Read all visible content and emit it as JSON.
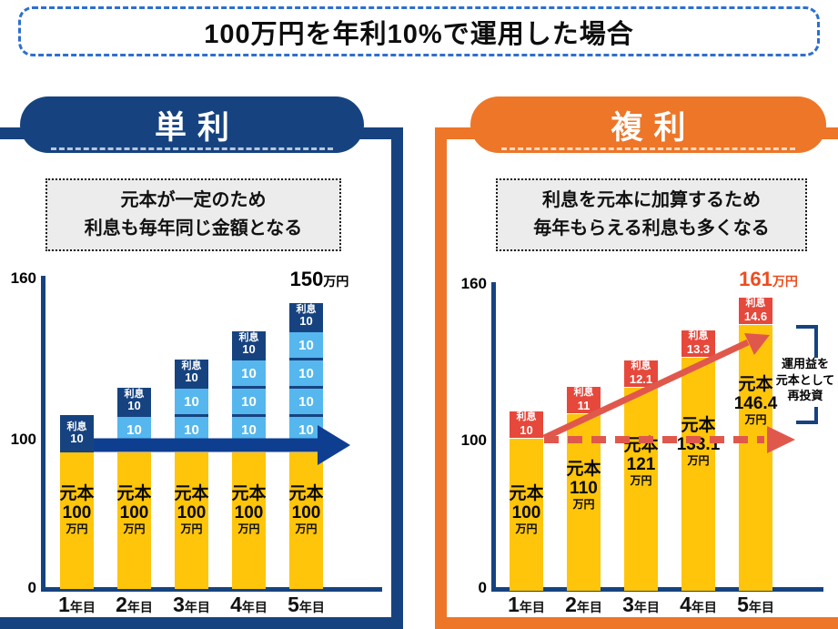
{
  "title": "100万円を年利10%で運用した場合",
  "colors": {
    "navy": "#164380",
    "orange": "#ED7628",
    "yellow": "#FFC50A",
    "light_blue": "#55B7EE",
    "red": "#E6483C",
    "salmon": "#E0584C",
    "arrow_blue": "#0E3E90",
    "annotation_orange": "#EE4B1E",
    "title_border_blue": "#2E6FCE",
    "desc_bg": "#ECECEC"
  },
  "panels": {
    "simple": {
      "header": "単利",
      "description": [
        "元本が一定のため",
        "利息も毎年同じ金額となる"
      ],
      "annotation": {
        "value": "150",
        "unit": "万円"
      }
    },
    "compound": {
      "header": "複利",
      "description": [
        "利息を元本に加算するため",
        "毎年もらえる利息も多くなる"
      ],
      "annotation": {
        "value": "161",
        "unit": "万円"
      },
      "bracket_label": [
        "運用益を",
        "元本として",
        "再投資"
      ]
    }
  },
  "chart_data": [
    {
      "type": "bar",
      "title": "単利",
      "categories": [
        "1年目",
        "2年目",
        "3年目",
        "4年目",
        "5年目"
      ],
      "category_suffix": "年目",
      "series": [
        {
          "name": "元本",
          "values": [
            100,
            100,
            100,
            100,
            100
          ]
        },
        {
          "name": "利息(累計)",
          "values": [
            10,
            20,
            30,
            40,
            50
          ]
        }
      ],
      "totals": [
        110,
        120,
        130,
        140,
        150
      ],
      "ylim": [
        0,
        160
      ],
      "yticks": [
        0,
        100,
        160
      ],
      "grid": false,
      "legend": false,
      "annotation": "150万円",
      "bars": [
        {
          "category_num": "1",
          "principal": {
            "label": "元本",
            "value": "100",
            "unit": "万円"
          },
          "interest_top": {
            "label": "利息",
            "value": "10"
          },
          "carried_segments": []
        },
        {
          "category_num": "2",
          "principal": {
            "label": "元本",
            "value": "100",
            "unit": "万円"
          },
          "interest_top": {
            "label": "利息",
            "value": "10"
          },
          "carried_segments": [
            "10"
          ]
        },
        {
          "category_num": "3",
          "principal": {
            "label": "元本",
            "value": "100",
            "unit": "万円"
          },
          "interest_top": {
            "label": "利息",
            "value": "10"
          },
          "carried_segments": [
            "10",
            "10"
          ]
        },
        {
          "category_num": "4",
          "principal": {
            "label": "元本",
            "value": "100",
            "unit": "万円"
          },
          "interest_top": {
            "label": "利息",
            "value": "10"
          },
          "carried_segments": [
            "10",
            "10",
            "10"
          ]
        },
        {
          "category_num": "5",
          "principal": {
            "label": "元本",
            "value": "100",
            "unit": "万円"
          },
          "interest_top": {
            "label": "利息",
            "value": "10"
          },
          "carried_segments": [
            "10",
            "10",
            "10",
            "10"
          ]
        }
      ]
    },
    {
      "type": "bar",
      "title": "複利",
      "categories": [
        "1年目",
        "2年目",
        "3年目",
        "4年目",
        "5年目"
      ],
      "category_suffix": "年目",
      "series": [
        {
          "name": "元本",
          "values": [
            100,
            110,
            121,
            133.1,
            146.4
          ]
        },
        {
          "name": "利息",
          "values": [
            10,
            11,
            12.1,
            13.3,
            14.6
          ]
        }
      ],
      "totals": [
        110,
        121,
        133.1,
        146.4,
        161
      ],
      "ylim": [
        0,
        160
      ],
      "yticks": [
        0,
        100,
        160
      ],
      "grid": false,
      "legend": false,
      "annotation": "161万円",
      "bars": [
        {
          "category_num": "1",
          "principal": {
            "label": "元本",
            "value": "100",
            "unit": "万円"
          },
          "interest": {
            "label": "利息",
            "value": "10"
          }
        },
        {
          "category_num": "2",
          "principal": {
            "label": "元本",
            "value": "110",
            "unit": "万円"
          },
          "interest": {
            "label": "利息",
            "value": "11"
          }
        },
        {
          "category_num": "3",
          "principal": {
            "label": "元本",
            "value": "121",
            "unit": "万円"
          },
          "interest": {
            "label": "利息",
            "value": "12.1"
          }
        },
        {
          "category_num": "4",
          "principal": {
            "label": "元本",
            "value": "133.1",
            "unit": "万円"
          },
          "interest": {
            "label": "利息",
            "value": "13.3"
          }
        },
        {
          "category_num": "5",
          "principal": {
            "label": "元本",
            "value": "146.4",
            "unit": "万円"
          },
          "interest": {
            "label": "利息",
            "value": "14.6"
          }
        }
      ]
    }
  ]
}
